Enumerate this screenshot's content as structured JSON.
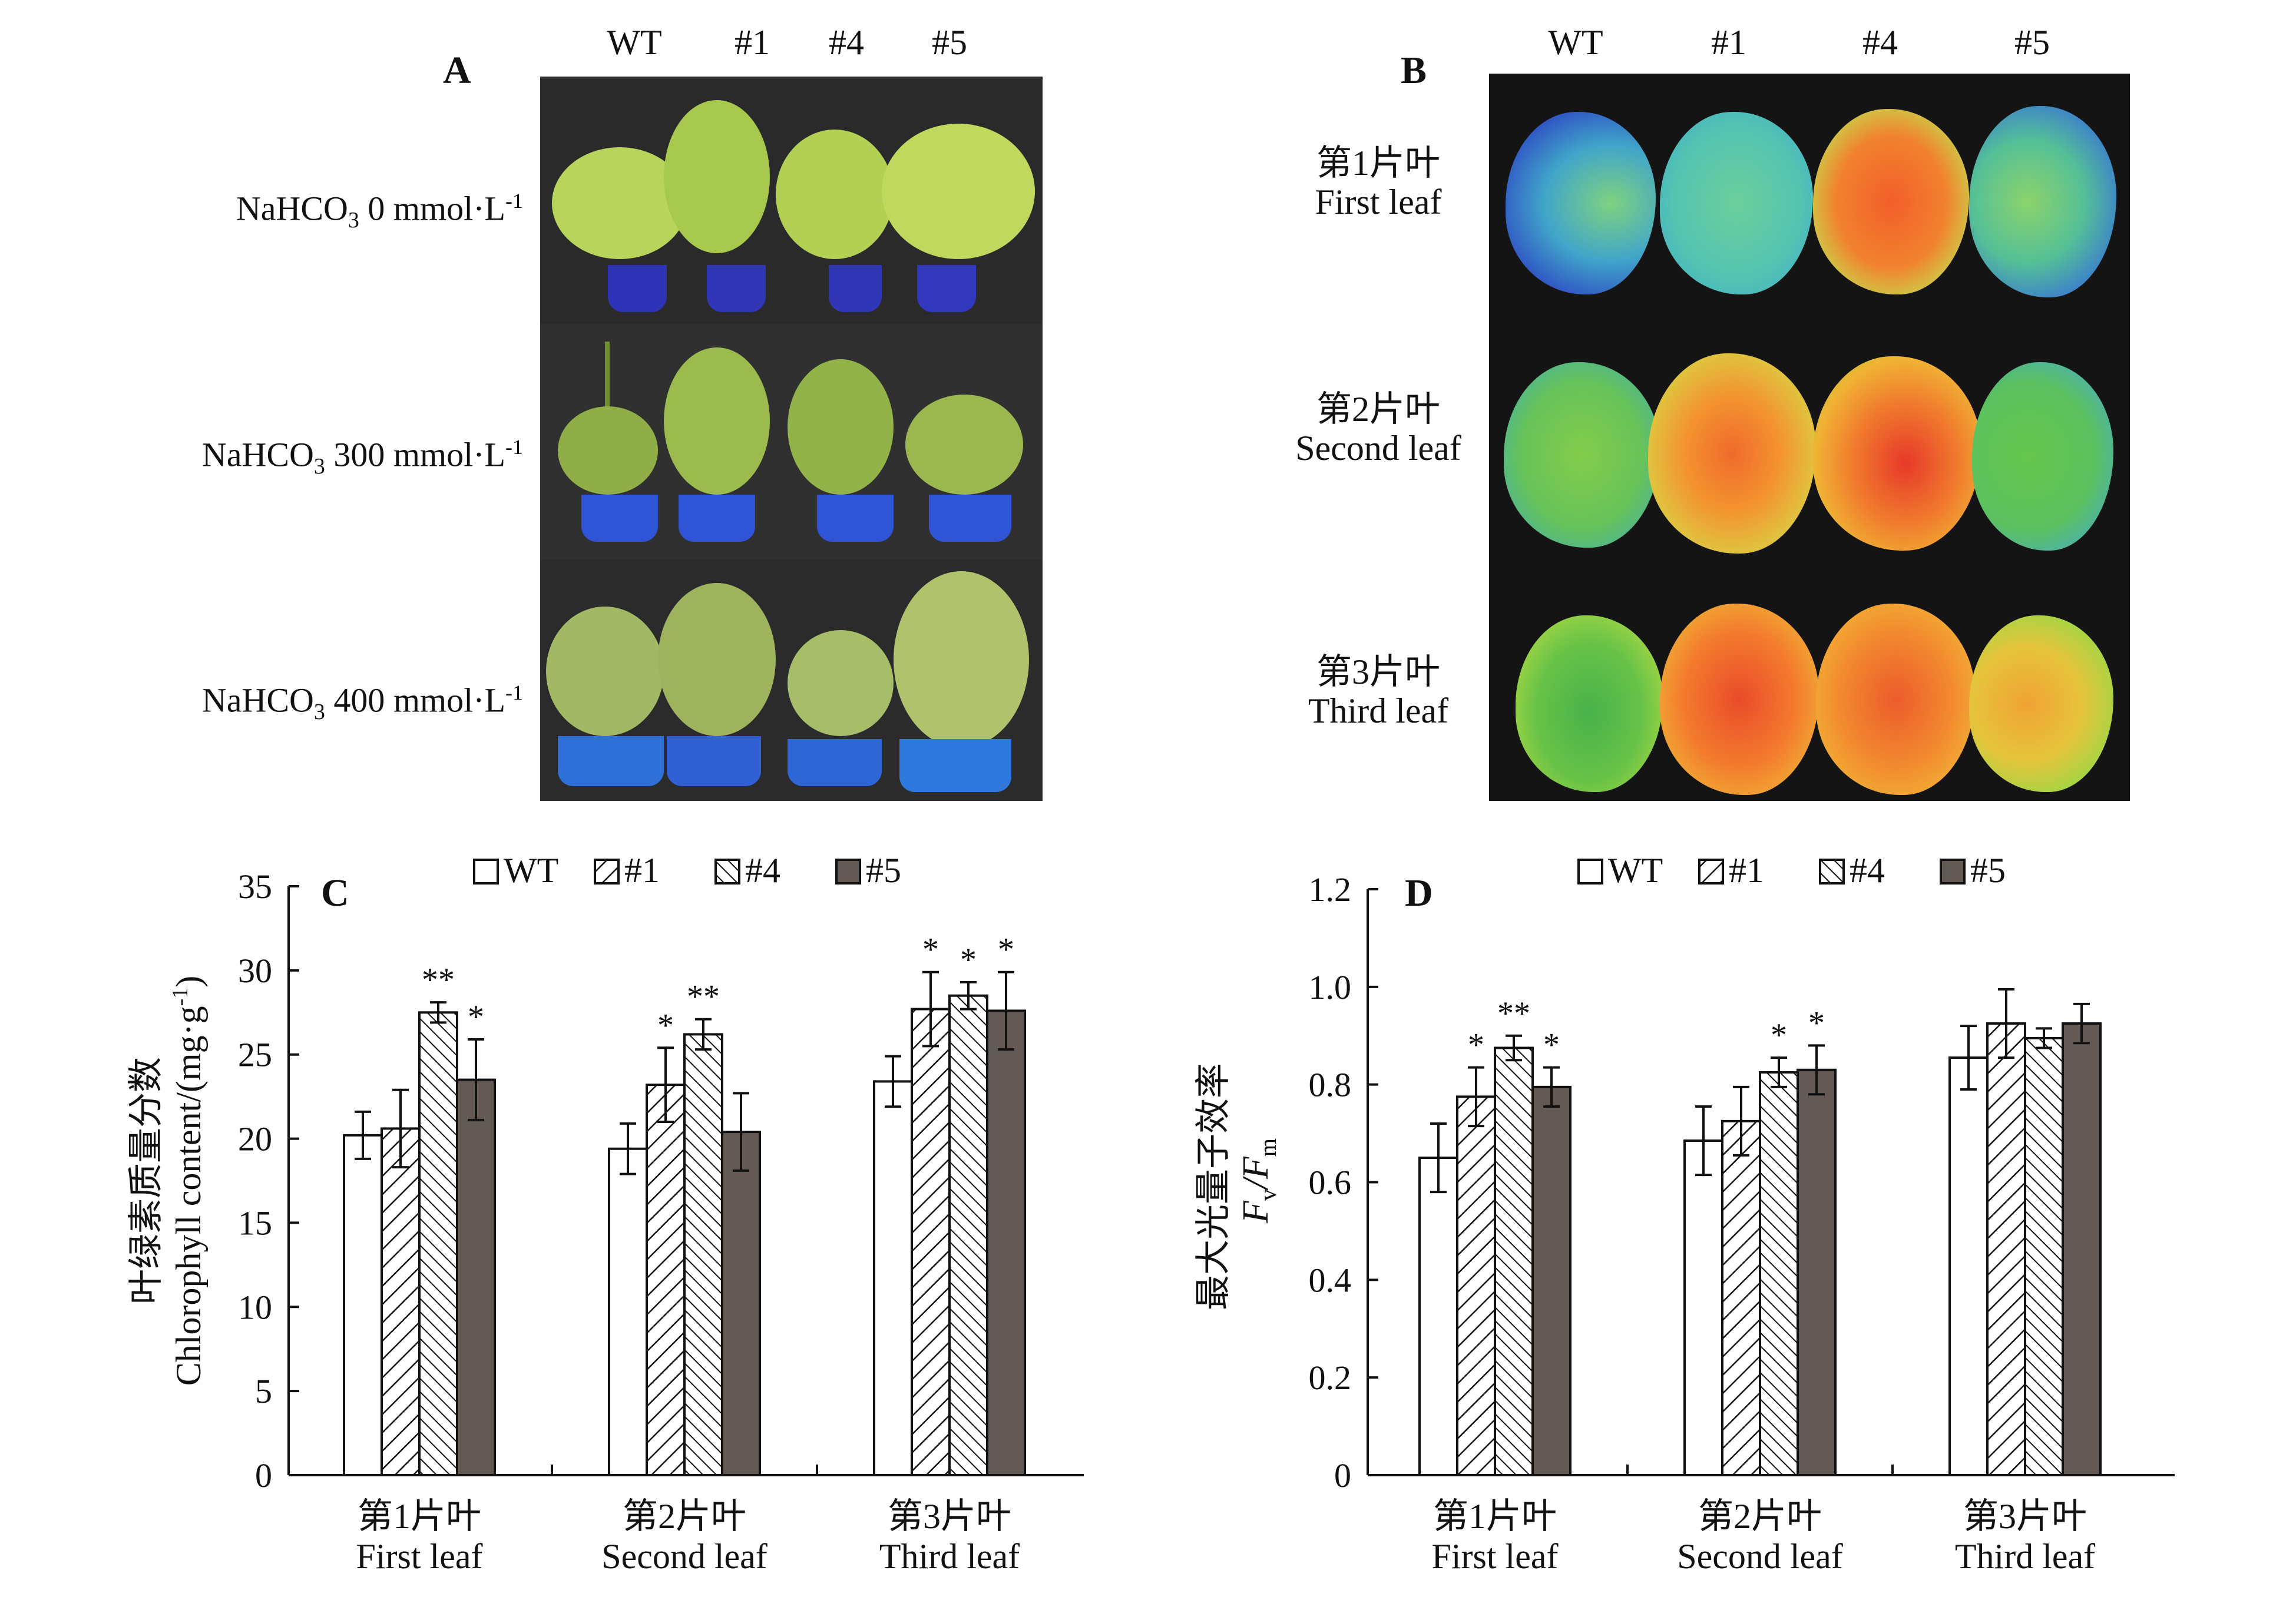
{
  "panel_a": {
    "letter": "A",
    "columns": [
      "WT",
      "#1",
      "#4",
      "#5"
    ],
    "rows": [
      {
        "chem": "NaHCO",
        "sub": "3",
        "conc": " 0 mmol·L",
        "sup": "-1"
      },
      {
        "chem": "NaHCO",
        "sub": "3",
        "conc": " 300 mmol·L",
        "sup": "-1"
      },
      {
        "chem": "NaHCO",
        "sub": "3",
        "conc": " 400 mmol·L",
        "sup": "-1"
      }
    ]
  },
  "panel_b": {
    "letter": "B",
    "columns": [
      "WT",
      "#1",
      "#4",
      "#5"
    ],
    "rows": [
      {
        "zh": "第1片叶",
        "en": "First leaf"
      },
      {
        "zh": "第2片叶",
        "en": "Second leaf"
      },
      {
        "zh": "第3片叶",
        "en": "Third leaf"
      }
    ]
  },
  "colors": {
    "wt_fill": "#ffffff",
    "line5_fill": "#635a55",
    "bar_stroke": "#111111",
    "photo_bg": "#1a1a1a"
  },
  "chart_data": [
    {
      "type": "bar",
      "panel": "C",
      "ylabel_zh": "叶绿素质量分数",
      "ylabel_en": "Chlorophyll content/(mg·g",
      "ylabel_sup": "-1",
      "ylabel_close": ")",
      "ylim": [
        0,
        35
      ],
      "yticks": [
        "0",
        "5",
        "10",
        "15",
        "20",
        "25",
        "30",
        "35"
      ],
      "ytick_values": [
        0,
        5,
        10,
        15,
        20,
        25,
        30,
        35
      ],
      "categories": [
        {
          "zh": "第1片叶",
          "en": "First leaf"
        },
        {
          "zh": "第2片叶",
          "en": "Second leaf"
        },
        {
          "zh": "第3片叶",
          "en": "Third leaf"
        }
      ],
      "legend": [
        "WT",
        "#1",
        "#4",
        "#5"
      ],
      "series": [
        {
          "name": "WT",
          "pattern": "white",
          "values": [
            20.2,
            19.4,
            23.4
          ],
          "errors": [
            1.4,
            1.5,
            1.5
          ],
          "sig": [
            "",
            "",
            ""
          ]
        },
        {
          "name": "#1",
          "pattern": "diag-right",
          "values": [
            20.6,
            23.2,
            27.7
          ],
          "errors": [
            2.3,
            2.2,
            2.2
          ],
          "sig": [
            "",
            "*",
            "*"
          ]
        },
        {
          "name": "#4",
          "pattern": "diag-left",
          "values": [
            27.5,
            26.2,
            28.5
          ],
          "errors": [
            0.6,
            0.9,
            0.8
          ],
          "sig": [
            "**",
            "**",
            "*"
          ]
        },
        {
          "name": "#5",
          "pattern": "dark",
          "values": [
            23.5,
            20.4,
            27.6
          ],
          "errors": [
            2.4,
            2.3,
            2.3
          ],
          "sig": [
            "*",
            "",
            "*"
          ]
        }
      ]
    },
    {
      "type": "bar",
      "panel": "D",
      "ylabel_zh": "最大光量子效率",
      "ylabel_en_v": "F",
      "ylabel_en_vsub": "v",
      "ylabel_en_slash": "/F",
      "ylabel_en_msub": "m",
      "ylim": [
        0,
        1.2
      ],
      "yticks": [
        "0",
        "0.2",
        "0.4",
        "0.6",
        "0.8",
        "1.0",
        "1.2"
      ],
      "ytick_values": [
        0,
        0.2,
        0.4,
        0.6,
        0.8,
        1.0,
        1.2
      ],
      "categories": [
        {
          "zh": "第1片叶",
          "en": "First leaf"
        },
        {
          "zh": "第2片叶",
          "en": "Second leaf"
        },
        {
          "zh": "第3片叶",
          "en": "Third leaf"
        }
      ],
      "legend": [
        "WT",
        "#1",
        "#4",
        "#5"
      ],
      "series": [
        {
          "name": "WT",
          "pattern": "white",
          "values": [
            0.65,
            0.685,
            0.855
          ],
          "errors": [
            0.07,
            0.07,
            0.065
          ],
          "sig": [
            "",
            "",
            ""
          ]
        },
        {
          "name": "#1",
          "pattern": "diag-right",
          "values": [
            0.775,
            0.725,
            0.925
          ],
          "errors": [
            0.06,
            0.07,
            0.07
          ],
          "sig": [
            "*",
            "",
            ""
          ]
        },
        {
          "name": "#4",
          "pattern": "diag-left",
          "values": [
            0.875,
            0.825,
            0.895
          ],
          "errors": [
            0.025,
            0.03,
            0.02
          ],
          "sig": [
            "**",
            "*",
            ""
          ]
        },
        {
          "name": "#5",
          "pattern": "dark",
          "values": [
            0.795,
            0.83,
            0.925
          ],
          "errors": [
            0.04,
            0.05,
            0.04
          ],
          "sig": [
            "*",
            "*",
            ""
          ]
        }
      ]
    }
  ]
}
